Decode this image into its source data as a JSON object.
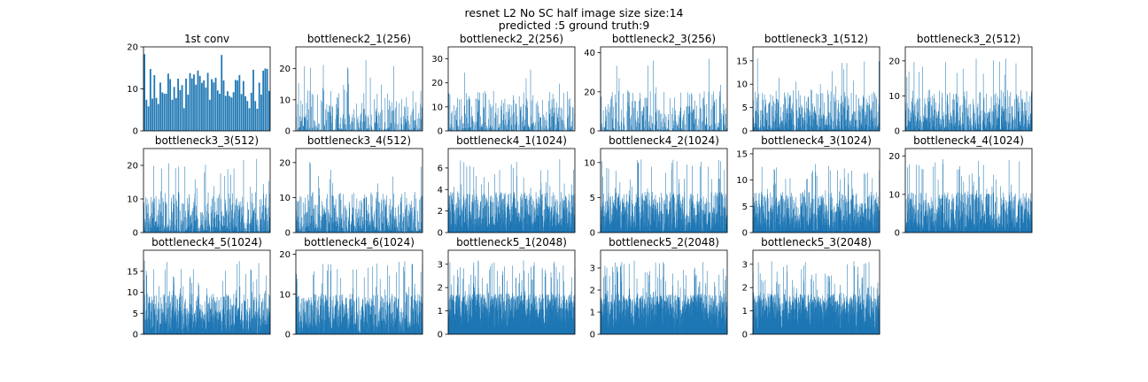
{
  "figure": {
    "title_line1": "resnet L2 No SC half image size size:14",
    "title_line2": "predicted :5 ground truth:9"
  },
  "colors": {
    "bar": "#1f77b4",
    "axis": "#000000",
    "background": "#ffffff"
  },
  "chart_data": [
    {
      "type": "bar",
      "title": "1st conv",
      "channels": 64,
      "ylim": [
        0,
        20
      ],
      "yticks": [
        0,
        10,
        20
      ]
    },
    {
      "type": "bar",
      "title": "bottleneck2_1(256)",
      "channels": 256,
      "ylim": [
        0,
        27
      ],
      "yticks": [
        0,
        10,
        20
      ]
    },
    {
      "type": "bar",
      "title": "bottleneck2_2(256)",
      "channels": 256,
      "ylim": [
        0,
        35
      ],
      "yticks": [
        0,
        10,
        20,
        30
      ]
    },
    {
      "type": "bar",
      "title": "bottleneck2_3(256)",
      "channels": 256,
      "ylim": [
        0,
        43
      ],
      "yticks": [
        0,
        20,
        40
      ]
    },
    {
      "type": "bar",
      "title": "bottleneck3_1(512)",
      "channels": 512,
      "ylim": [
        0,
        18
      ],
      "yticks": [
        0,
        5,
        10,
        15
      ]
    },
    {
      "type": "bar",
      "title": "bottleneck3_2(512)",
      "channels": 512,
      "ylim": [
        0,
        24
      ],
      "yticks": [
        0,
        10,
        20
      ]
    },
    {
      "type": "bar",
      "title": "bottleneck3_3(512)",
      "channels": 512,
      "ylim": [
        0,
        25
      ],
      "yticks": [
        0,
        10,
        20
      ]
    },
    {
      "type": "bar",
      "title": "bottleneck3_4(512)",
      "channels": 512,
      "ylim": [
        0,
        24
      ],
      "yticks": [
        0,
        10,
        20
      ]
    },
    {
      "type": "bar",
      "title": "bottleneck4_1(1024)",
      "channels": 1024,
      "ylim": [
        0,
        7.8
      ],
      "yticks": [
        0,
        2,
        4,
        6
      ]
    },
    {
      "type": "bar",
      "title": "bottleneck4_2(1024)",
      "channels": 1024,
      "ylim": [
        0,
        12
      ],
      "yticks": [
        0,
        5,
        10
      ]
    },
    {
      "type": "bar",
      "title": "bottleneck4_3(1024)",
      "channels": 1024,
      "ylim": [
        0,
        16
      ],
      "yticks": [
        0,
        5,
        10,
        15
      ]
    },
    {
      "type": "bar",
      "title": "bottleneck4_4(1024)",
      "channels": 1024,
      "ylim": [
        0,
        22
      ],
      "yticks": [
        0,
        10,
        20
      ]
    },
    {
      "type": "bar",
      "title": "bottleneck4_5(1024)",
      "channels": 1024,
      "ylim": [
        0,
        20
      ],
      "yticks": [
        0,
        5,
        10,
        15
      ]
    },
    {
      "type": "bar",
      "title": "bottleneck4_6(1024)",
      "channels": 1024,
      "ylim": [
        0,
        21
      ],
      "yticks": [
        0,
        10,
        20
      ]
    },
    {
      "type": "bar",
      "title": "bottleneck5_1(2048)",
      "channels": 2048,
      "ylim": [
        0,
        3.6
      ],
      "yticks": [
        0,
        1,
        2,
        3
      ]
    },
    {
      "type": "bar",
      "title": "bottleneck5_2(2048)",
      "channels": 2048,
      "ylim": [
        0,
        3.8
      ],
      "yticks": [
        0,
        1,
        2,
        3
      ]
    },
    {
      "type": "bar",
      "title": "bottleneck5_3(2048)",
      "channels": 2048,
      "ylim": [
        0,
        3.6
      ],
      "yticks": [
        0,
        1,
        2,
        3
      ]
    }
  ]
}
